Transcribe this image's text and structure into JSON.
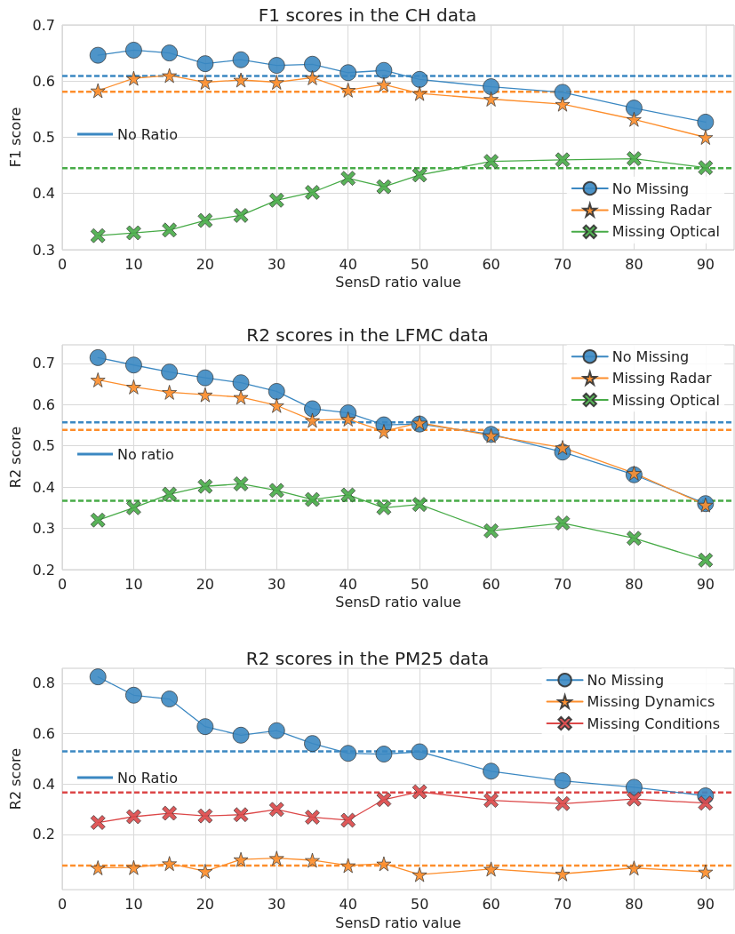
{
  "chart_data": [
    {
      "type": "line",
      "title": "F1 scores in the CH data",
      "xlabel": "SensD ratio value",
      "ylabel": "F1 score",
      "x": [
        5,
        10,
        15,
        20,
        25,
        30,
        35,
        40,
        45,
        50,
        60,
        70,
        80,
        90
      ],
      "xlim": [
        0,
        94
      ],
      "xticks": [
        0,
        10,
        20,
        30,
        40,
        50,
        60,
        70,
        80,
        90
      ],
      "ylim": [
        0.3,
        0.7
      ],
      "yticks": [
        0.3,
        0.4,
        0.5,
        0.6,
        0.7
      ],
      "grid": true,
      "legend": "bottom right",
      "series": [
        {
          "name": "No Missing",
          "color": "#3b88c2",
          "marker": "circle",
          "values": [
            0.646,
            0.655,
            0.65,
            0.631,
            0.638,
            0.628,
            0.63,
            0.615,
            0.619,
            0.603,
            0.59,
            0.58,
            0.552,
            0.527
          ]
        },
        {
          "name": "Missing Radar",
          "color": "#fd8e2c",
          "marker": "star",
          "values": [
            0.583,
            0.605,
            0.61,
            0.598,
            0.602,
            0.598,
            0.606,
            0.584,
            0.594,
            0.578,
            0.568,
            0.559,
            0.532,
            0.5
          ]
        },
        {
          "name": "Missing Optical",
          "color": "#47ab47",
          "marker": "cross",
          "values": [
            0.325,
            0.33,
            0.335,
            0.352,
            0.361,
            0.388,
            0.402,
            0.427,
            0.412,
            0.433,
            0.457,
            0.46,
            0.462,
            0.446
          ]
        }
      ],
      "ref_lines": [
        {
          "axis": "y",
          "value": 0.609,
          "label": "No Ratio",
          "color": "#3b88c2",
          "line_style": "dashed"
        },
        {
          "axis": "y",
          "value": 0.581,
          "color": "#fd8e2c",
          "line_style": "dashed"
        },
        {
          "axis": "y",
          "value": 0.445,
          "color": "#47ab47",
          "line_style": "dashed"
        }
      ]
    },
    {
      "type": "line",
      "title": "R2 scores in the LFMC data",
      "xlabel": "SensD ratio value",
      "ylabel": "R2 score",
      "x": [
        5,
        10,
        15,
        20,
        25,
        30,
        35,
        40,
        45,
        50,
        60,
        70,
        80,
        90
      ],
      "xlim": [
        0,
        94
      ],
      "xticks": [
        0,
        10,
        20,
        30,
        40,
        50,
        60,
        70,
        80,
        90
      ],
      "ylim": [
        0.2,
        0.745
      ],
      "yticks": [
        0.2,
        0.3,
        0.4,
        0.5,
        0.6,
        0.7
      ],
      "grid": true,
      "legend": "top right",
      "series": [
        {
          "name": "No Missing",
          "color": "#3b88c2",
          "marker": "circle",
          "values": [
            0.714,
            0.696,
            0.679,
            0.665,
            0.653,
            0.632,
            0.59,
            0.58,
            0.551,
            0.553,
            0.528,
            0.485,
            0.43,
            0.36
          ]
        },
        {
          "name": "Missing Radar",
          "color": "#fd8e2c",
          "marker": "star",
          "values": [
            0.66,
            0.643,
            0.63,
            0.624,
            0.618,
            0.598,
            0.562,
            0.565,
            0.535,
            0.556,
            0.525,
            0.496,
            0.434,
            0.357
          ]
        },
        {
          "name": "Missing Optical",
          "color": "#47ab47",
          "marker": "cross",
          "values": [
            0.32,
            0.35,
            0.383,
            0.402,
            0.408,
            0.392,
            0.37,
            0.381,
            0.35,
            0.358,
            0.294,
            0.313,
            0.276,
            0.223
          ]
        }
      ],
      "ref_lines": [
        {
          "axis": "y",
          "value": 0.557,
          "label": "No ratio",
          "color": "#3b88c2",
          "line_style": "dashed"
        },
        {
          "axis": "y",
          "value": 0.539,
          "color": "#fd8e2c",
          "line_style": "dashed"
        },
        {
          "axis": "y",
          "value": 0.367,
          "color": "#47ab47",
          "line_style": "dashed"
        }
      ]
    },
    {
      "type": "line",
      "title": "R2 scores in the PM25 data",
      "xlabel": "SensD ratio value",
      "ylabel": "R2 score",
      "x": [
        5,
        10,
        15,
        20,
        25,
        30,
        35,
        40,
        45,
        50,
        60,
        70,
        80,
        90
      ],
      "xlim": [
        0,
        94
      ],
      "xticks": [
        0,
        10,
        20,
        30,
        40,
        50,
        60,
        70,
        80,
        90
      ],
      "ylim": [
        -0.02,
        0.86
      ],
      "yticks": [
        0.2,
        0.4,
        0.6,
        0.8
      ],
      "grid": true,
      "legend": "top right",
      "series": [
        {
          "name": "No Missing",
          "color": "#3b88c2",
          "marker": "circle",
          "values": [
            0.826,
            0.753,
            0.738,
            0.628,
            0.594,
            0.612,
            0.561,
            0.522,
            0.519,
            0.528,
            0.451,
            0.413,
            0.387,
            0.353
          ]
        },
        {
          "name": "Missing Dynamics",
          "color": "#fd8e2c",
          "marker": "star",
          "values": [
            0.067,
            0.068,
            0.084,
            0.053,
            0.1,
            0.105,
            0.097,
            0.076,
            0.083,
            0.04,
            0.062,
            0.043,
            0.066,
            0.051
          ]
        },
        {
          "name": "Missing Conditions",
          "color": "#dc4748",
          "marker": "cross",
          "values": [
            0.247,
            0.27,
            0.284,
            0.273,
            0.278,
            0.299,
            0.268,
            0.256,
            0.338,
            0.369,
            0.335,
            0.322,
            0.34,
            0.324
          ]
        }
      ],
      "ref_lines": [
        {
          "axis": "y",
          "value": 0.53,
          "label": "No Ratio",
          "color": "#3b88c2",
          "line_style": "dashed"
        },
        {
          "axis": "y",
          "value": 0.366,
          "color": "#dc4748",
          "line_style": "dashed"
        },
        {
          "axis": "y",
          "value": 0.076,
          "color": "#fd8e2c",
          "line_style": "dashed"
        }
      ]
    }
  ]
}
